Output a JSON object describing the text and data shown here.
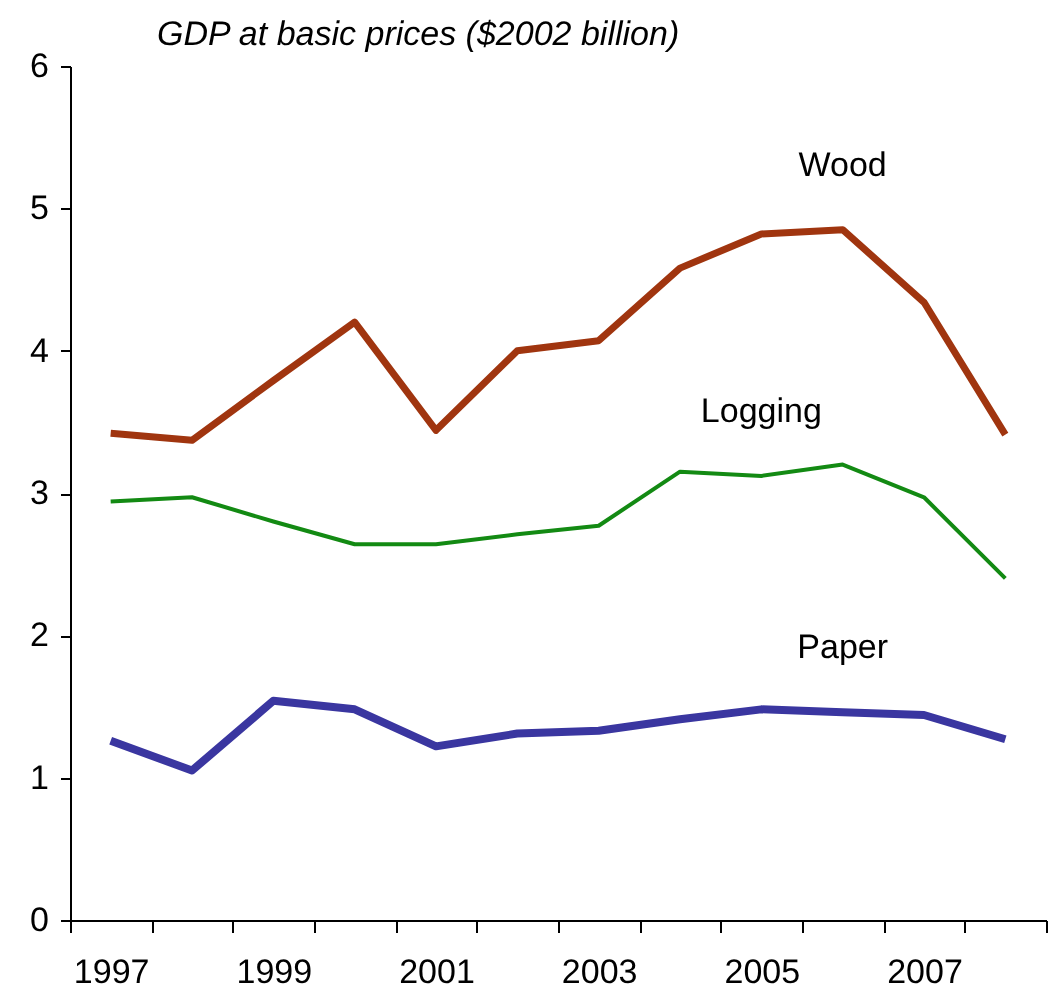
{
  "chart_data": {
    "type": "line",
    "ylabel": "GDP at basic prices ($2002 billion)",
    "categories": [
      "1997",
      null,
      "1999",
      null,
      "2001",
      null,
      "2003",
      null,
      "2005",
      null,
      "2007",
      null
    ],
    "ylim": [
      0,
      6
    ],
    "yticks": [
      0,
      1,
      2,
      3,
      4,
      5,
      6
    ],
    "grid": false,
    "series": [
      {
        "name": "Wood",
        "color": "#a0350f",
        "values": [
          3.42,
          3.37,
          3.79,
          4.2,
          3.44,
          4.0,
          4.07,
          4.58,
          4.82,
          4.85,
          4.34,
          3.41
        ]
      },
      {
        "name": "Logging",
        "color": "#138a13",
        "values": [
          2.94,
          2.97,
          2.8,
          2.64,
          2.64,
          2.71,
          2.77,
          3.15,
          3.12,
          3.2,
          2.97,
          2.4
        ]
      },
      {
        "name": "Paper",
        "color": "#3a36a0",
        "values": [
          1.26,
          1.05,
          1.54,
          1.48,
          1.22,
          1.31,
          1.33,
          1.41,
          1.48,
          1.46,
          1.44,
          1.27
        ]
      }
    ]
  }
}
